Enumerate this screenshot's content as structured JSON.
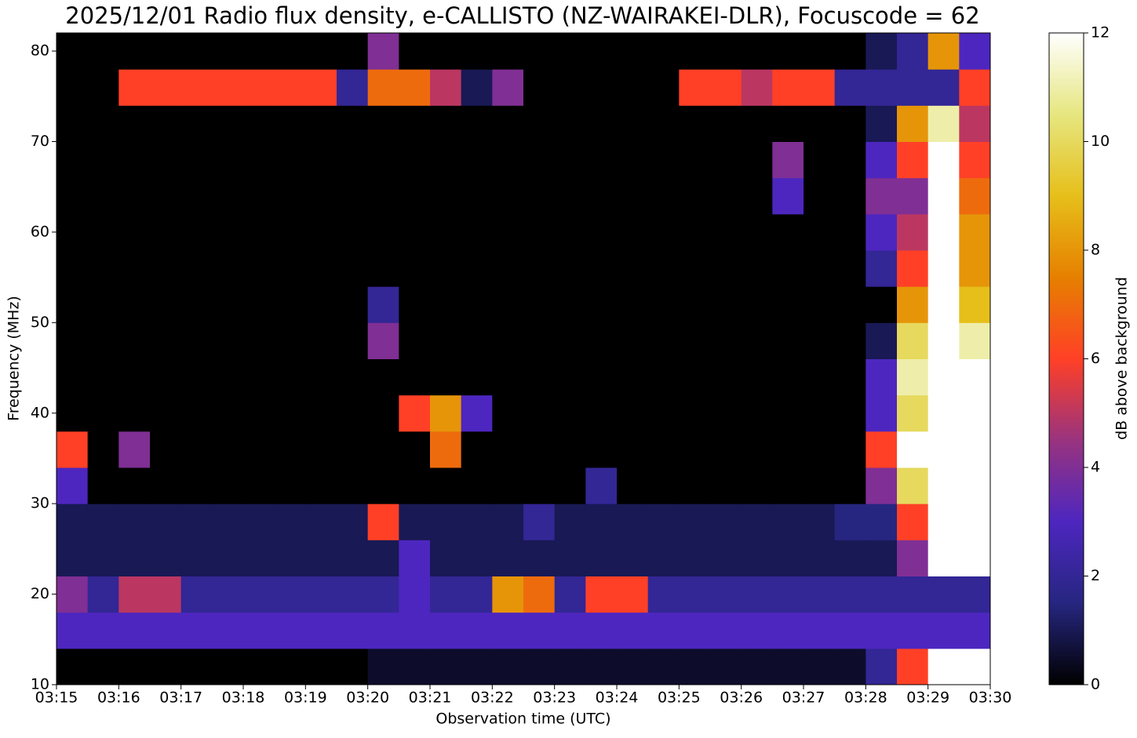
{
  "chart_data": {
    "type": "heatmap",
    "title": "2025/12/01 Radio flux density, e-CALLISTO (NZ-WAIRAKEI-DLR), Focuscode = 62",
    "x_label": "Observation time (UTC)",
    "y_label": "Frequency (MHz)",
    "colorbar_label": "dB above background",
    "xlim": [
      "03:15",
      "03:30"
    ],
    "xticks": [
      "03:15",
      "03:16",
      "03:17",
      "03:18",
      "03:19",
      "03:20",
      "03:21",
      "03:22",
      "03:23",
      "03:24",
      "03:25",
      "03:26",
      "03:27",
      "03:28",
      "03:29",
      "03:30"
    ],
    "ylim": [
      10,
      82
    ],
    "yticks": [
      10,
      20,
      30,
      40,
      50,
      60,
      70,
      80
    ],
    "clim": [
      0,
      12
    ],
    "cticks": [
      0,
      2,
      4,
      6,
      8,
      10,
      12
    ],
    "colormap": [
      "#000000",
      "#262680",
      "#4d26bf",
      "#99337f",
      "#ff4026",
      "#e68000",
      "#e6bf1a",
      "#e6e680",
      "#ffffff"
    ],
    "z": [
      [
        0,
        0,
        0,
        0,
        0,
        0,
        0,
        0,
        0,
        0,
        0.5,
        0.5,
        0.5,
        0.5,
        0.5,
        0.5,
        0.5,
        0.5,
        0.5,
        0.5,
        0.5,
        0.5,
        0.5,
        0.5,
        0.5,
        0.5,
        2,
        6,
        12,
        12
      ],
      [
        3,
        3,
        3,
        3,
        3,
        3,
        3,
        3,
        3,
        3,
        3,
        3,
        3,
        3,
        3,
        3,
        3,
        3,
        3,
        3,
        3,
        3,
        3,
        3,
        3,
        3,
        3,
        3,
        3,
        3
      ],
      [
        4,
        2,
        5,
        5,
        2,
        2,
        2,
        2,
        2,
        2,
        2,
        3,
        2,
        2,
        8,
        7,
        2,
        6,
        6,
        2,
        2,
        2,
        2,
        2,
        2,
        2,
        2,
        2,
        2,
        2
      ],
      [
        1,
        1,
        1,
        1,
        1,
        1,
        1,
        1,
        1,
        1,
        1,
        3,
        1,
        1,
        1,
        1,
        1,
        1,
        1,
        1,
        1,
        1,
        1,
        1,
        1,
        1,
        1,
        4,
        12,
        12
      ],
      [
        1,
        1,
        1,
        1,
        1,
        1,
        1,
        1,
        1,
        1,
        6,
        1,
        1,
        1,
        1,
        2,
        1,
        1,
        1,
        1,
        1,
        1,
        1,
        1,
        1,
        1.5,
        1.5,
        6,
        12,
        12
      ],
      [
        3,
        0,
        0,
        0,
        0,
        0,
        0,
        0,
        0,
        0,
        0,
        0,
        0,
        0,
        0,
        0,
        0,
        2,
        0,
        0,
        0,
        0,
        0,
        0,
        0,
        0,
        4,
        10,
        12,
        12
      ],
      [
        6,
        0,
        4,
        0,
        0,
        0,
        0,
        0,
        0,
        0,
        0,
        0,
        7,
        0,
        0,
        0,
        0,
        0,
        0,
        0,
        0,
        0,
        0,
        0,
        0,
        0,
        6,
        12,
        12,
        12
      ],
      [
        0,
        0,
        0,
        0,
        0,
        0,
        0,
        0,
        0,
        0,
        0,
        6,
        8,
        3,
        0,
        0,
        0,
        0,
        0,
        0,
        0,
        0,
        0,
        0,
        0,
        0,
        3,
        10,
        12,
        12
      ],
      [
        0,
        0,
        0,
        0,
        0,
        0,
        0,
        0,
        0,
        0,
        0,
        0,
        0,
        0,
        0,
        0,
        0,
        0,
        0,
        0,
        0,
        0,
        0,
        0,
        0,
        0,
        3,
        11,
        12,
        12
      ],
      [
        0,
        0,
        0,
        0,
        0,
        0,
        0,
        0,
        0,
        0,
        4,
        0,
        0,
        0,
        0,
        0,
        0,
        0,
        0,
        0,
        0,
        0,
        0,
        0,
        0,
        0,
        1,
        10,
        12,
        11
      ],
      [
        0,
        0,
        0,
        0,
        0,
        0,
        0,
        0,
        0,
        0,
        2,
        0,
        0,
        0,
        0,
        0,
        0,
        0,
        0,
        0,
        0,
        0,
        0,
        0,
        0,
        0,
        0,
        8,
        12,
        9
      ],
      [
        0,
        0,
        0,
        0,
        0,
        0,
        0,
        0,
        0,
        0,
        0,
        0,
        0,
        0,
        0,
        0,
        0,
        0,
        0,
        0,
        0,
        0,
        0,
        0,
        0,
        0,
        2,
        6,
        12,
        8
      ],
      [
        0,
        0,
        0,
        0,
        0,
        0,
        0,
        0,
        0,
        0,
        0,
        0,
        0,
        0,
        0,
        0,
        0,
        0,
        0,
        0,
        0,
        0,
        0,
        0,
        0,
        0,
        3,
        5,
        12,
        8
      ],
      [
        0,
        0,
        0,
        0,
        0,
        0,
        0,
        0,
        0,
        0,
        0,
        0,
        0,
        0,
        0,
        0,
        0,
        0,
        0,
        0,
        0,
        0,
        0,
        3,
        0,
        0,
        4,
        4,
        12,
        7
      ],
      [
        0,
        0,
        0,
        0,
        0,
        0,
        0,
        0,
        0,
        0,
        0,
        0,
        0,
        0,
        0,
        0,
        0,
        0,
        0,
        0,
        0,
        0,
        0,
        4,
        0,
        0,
        3,
        6,
        12,
        6
      ],
      [
        0,
        0,
        0,
        0,
        0,
        0,
        0,
        0,
        0,
        0,
        0,
        0,
        0,
        0,
        0,
        0,
        0,
        0,
        0,
        0,
        0,
        0,
        0,
        0,
        0,
        0,
        1,
        8,
        11,
        5
      ],
      [
        0,
        0,
        6,
        6,
        6,
        6,
        6,
        6,
        6,
        2,
        7,
        7,
        5,
        1,
        4,
        0,
        0,
        0,
        0,
        0,
        6,
        6,
        5,
        6,
        6,
        2,
        2,
        2,
        2,
        6
      ],
      [
        0,
        0,
        0,
        0,
        0,
        0,
        0,
        0,
        0,
        0,
        4,
        0,
        0,
        0,
        0,
        0,
        0,
        0,
        0,
        0,
        0,
        0,
        0,
        0,
        0,
        0,
        1,
        2,
        8,
        3
      ]
    ]
  }
}
